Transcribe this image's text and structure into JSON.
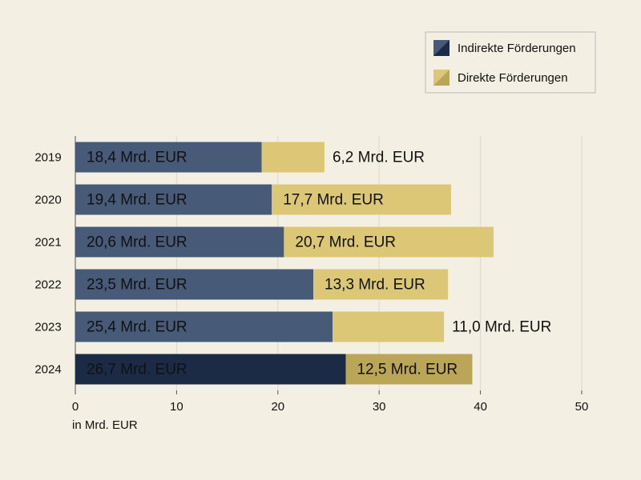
{
  "chart_data": {
    "type": "bar",
    "orientation": "horizontal",
    "stacked": true,
    "categories": [
      "2019",
      "2020",
      "2021",
      "2022",
      "2023",
      "2024"
    ],
    "series": [
      {
        "name": "Indirekte Förderungen",
        "color": "#475a78",
        "colors": [
          "#475a78",
          "#475a78",
          "#475a78",
          "#475a78",
          "#475a78",
          "#1b2a45"
        ],
        "values": [
          18.4,
          19.4,
          20.6,
          23.5,
          25.4,
          26.7
        ],
        "value_labels": [
          "18,4 Mrd. EUR",
          "19,4 Mrd. EUR",
          "20,6 Mrd. EUR",
          "23,5 Mrd. EUR",
          "25,4 Mrd. EUR",
          "26,7 Mrd. EUR"
        ]
      },
      {
        "name": "Direkte Förderungen",
        "color": "#dcc777",
        "colors": [
          "#dcc777",
          "#dcc777",
          "#dcc777",
          "#dcc777",
          "#dcc777",
          "#bba657"
        ],
        "values": [
          6.2,
          17.7,
          20.7,
          13.3,
          11.0,
          12.5
        ],
        "value_labels": [
          "6,2 Mrd. EUR",
          "17,7 Mrd. EUR",
          "20,7 Mrd. EUR",
          "13,3 Mrd. EUR",
          "11,0 Mrd. EUR",
          "12,5 Mrd. EUR"
        ]
      }
    ],
    "xlim": [
      0,
      50
    ],
    "xticks": [
      0,
      10,
      20,
      30,
      40,
      50
    ],
    "xlabel": "in Mrd. EUR",
    "grid": true,
    "legend": "top-right"
  }
}
